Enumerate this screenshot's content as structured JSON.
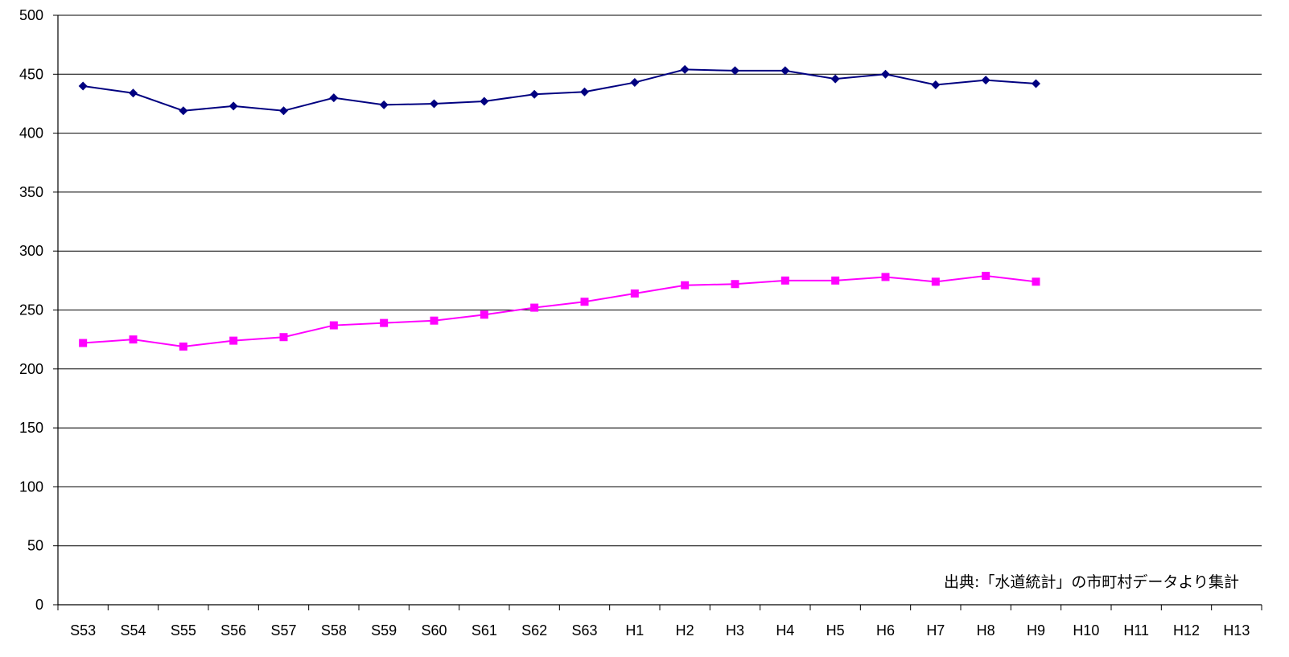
{
  "chart_data": {
    "type": "line",
    "categories": [
      "S53",
      "S54",
      "S55",
      "S56",
      "S57",
      "S58",
      "S59",
      "S60",
      "S61",
      "S62",
      "S63",
      "H1",
      "H2",
      "H3",
      "H4",
      "H5",
      "H6",
      "H7",
      "H8",
      "H9",
      "H10",
      "H11",
      "H12",
      "H13"
    ],
    "series": [
      {
        "color": "#000080",
        "marker": "diamond",
        "values": [
          440,
          434,
          419,
          423,
          419,
          430,
          424,
          425,
          427,
          433,
          435,
          443,
          454,
          453,
          453,
          446,
          450,
          441,
          445,
          442,
          null,
          null,
          null,
          null
        ]
      },
      {
        "color": "#ff00ff",
        "marker": "square",
        "values": [
          222,
          225,
          219,
          224,
          227,
          237,
          239,
          241,
          246,
          252,
          257,
          264,
          271,
          272,
          275,
          275,
          278,
          274,
          279,
          274,
          null,
          null,
          null,
          null
        ]
      }
    ],
    "ylim": [
      0,
      500
    ],
    "yticks": [
      "0",
      "50",
      "100",
      "150",
      "200",
      "250",
      "300",
      "350",
      "400",
      "450",
      "500"
    ],
    "grid": true,
    "legend": "none",
    "annotation": "出典:「水道統計」の市町村データより集計"
  }
}
